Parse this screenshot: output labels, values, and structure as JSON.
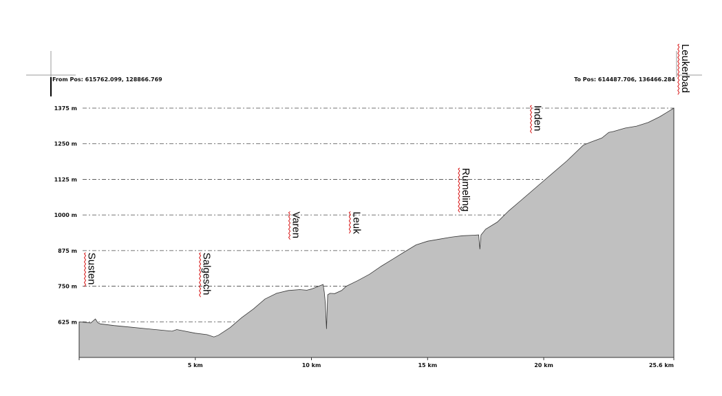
{
  "header": {
    "from_pos": "From Pos: 615762.099, 128866.769",
    "to_pos": "To Pos: 614487.706, 136466.284"
  },
  "chart_data": {
    "type": "area",
    "title": "",
    "xlabel": "",
    "ylabel": "",
    "xlim": [
      0,
      25.6
    ],
    "ylim": [
      500,
      1375
    ],
    "grid": true,
    "fill_color": "#c0c0c0",
    "line_color": "#333333",
    "y_ticks": [
      {
        "value": 625,
        "label": "625 m"
      },
      {
        "value": 750,
        "label": "750 m"
      },
      {
        "value": 875,
        "label": "875 m"
      },
      {
        "value": 1000,
        "label": "1000 m"
      },
      {
        "value": 1125,
        "label": "1125 m"
      },
      {
        "value": 1250,
        "label": "1250 m"
      },
      {
        "value": 1375,
        "label": "1375 m"
      }
    ],
    "x_ticks": [
      {
        "value": 5,
        "label": "5 km"
      },
      {
        "value": 10,
        "label": "10 km"
      },
      {
        "value": 15,
        "label": "15 km"
      },
      {
        "value": 20,
        "label": "20 km"
      },
      {
        "value": 25.6,
        "label": "25.6 km"
      }
    ],
    "x": [
      0,
      0.5,
      0.7,
      0.8,
      0.9,
      1.5,
      2.0,
      3.0,
      4.0,
      4.2,
      5.0,
      5.5,
      5.8,
      6.0,
      6.5,
      7.0,
      7.5,
      8.0,
      8.5,
      9.0,
      9.5,
      9.8,
      10.0,
      10.5,
      10.55,
      10.6,
      10.65,
      10.7,
      10.8,
      11.0,
      11.3,
      11.5,
      12.0,
      12.5,
      13.0,
      13.5,
      14.0,
      14.5,
      15.0,
      15.5,
      16.0,
      16.5,
      17.0,
      17.2,
      17.25,
      17.3,
      17.5,
      18.0,
      18.5,
      19.0,
      20.0,
      21.0,
      21.7,
      22.0,
      22.5,
      22.8,
      23.0,
      23.5,
      24.0,
      24.5,
      25.0,
      25.3,
      25.6
    ],
    "y": [
      625,
      621,
      635,
      622,
      618,
      612,
      608,
      600,
      592,
      598,
      585,
      580,
      572,
      578,
      605,
      640,
      670,
      705,
      725,
      735,
      738,
      736,
      740,
      756,
      730,
      690,
      600,
      720,
      725,
      724,
      735,
      750,
      770,
      792,
      820,
      845,
      870,
      895,
      908,
      915,
      922,
      927,
      929,
      930,
      880,
      930,
      950,
      975,
      1015,
      1050,
      1120,
      1190,
      1245,
      1255,
      1270,
      1290,
      1293,
      1305,
      1312,
      1325,
      1345,
      1360,
      1375
    ],
    "annotations": [
      {
        "label": "Susten",
        "x": 0.4,
        "y": 868
      },
      {
        "label": "Salgesch",
        "x": 5.35,
        "y": 868
      },
      {
        "label": "Varen",
        "x": 9.2,
        "y": 1012
      },
      {
        "label": "Leuk",
        "x": 11.8,
        "y": 1012
      },
      {
        "label": "Rumeling",
        "x": 16.5,
        "y": 1165
      },
      {
        "label": "Inden",
        "x": 19.6,
        "y": 1385
      },
      {
        "label": "Leukerbad",
        "x": 25.95,
        "y": 1600
      }
    ]
  }
}
